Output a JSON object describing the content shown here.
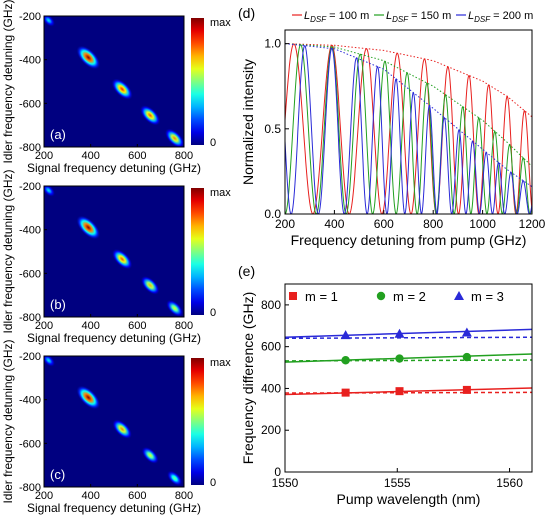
{
  "chart_data": [
    {
      "type": "heatmap",
      "panel_label": "(a)",
      "xlabel": "Signal frequency detuning (GHz)",
      "ylabel": "Idler frequency detuning (GHz)",
      "xlim": [
        200,
        800
      ],
      "ylim": [
        -800,
        -200
      ],
      "xticks": [
        "200",
        "400",
        "600",
        "800"
      ],
      "yticks": [
        "-200",
        "-400",
        "-600",
        "-800"
      ],
      "colorbar": {
        "min_label": "0",
        "max_label": "max"
      },
      "spots": [
        {
          "x": 220,
          "y": -220,
          "peak": 0.35
        },
        {
          "x": 390,
          "y": -390,
          "peak": 1.0
        },
        {
          "x": 535,
          "y": -535,
          "peak": 0.85
        },
        {
          "x": 655,
          "y": -655,
          "peak": 0.8
        },
        {
          "x": 760,
          "y": -760,
          "peak": 0.75
        }
      ]
    },
    {
      "type": "heatmap",
      "panel_label": "(b)",
      "xlabel": "Signal frequency detuning (GHz)",
      "ylabel": "Idler frequency detuning (GHz)",
      "xlim": [
        200,
        800
      ],
      "ylim": [
        -800,
        -200
      ],
      "xticks": [
        "200",
        "400",
        "600",
        "800"
      ],
      "yticks": [
        "-200",
        "-400",
        "-600",
        "-800"
      ],
      "colorbar": {
        "min_label": "0",
        "max_label": "max"
      },
      "spots": [
        {
          "x": 220,
          "y": -220,
          "peak": 0.35
        },
        {
          "x": 390,
          "y": -390,
          "peak": 1.0
        },
        {
          "x": 535,
          "y": -535,
          "peak": 0.8
        },
        {
          "x": 655,
          "y": -655,
          "peak": 0.7
        },
        {
          "x": 760,
          "y": -760,
          "peak": 0.6
        }
      ]
    },
    {
      "type": "heatmap",
      "panel_label": "(c)",
      "xlabel": "Signal frequency detuning (GHz)",
      "ylabel": "Idler frequency detuning (GHz)",
      "xlim": [
        200,
        800
      ],
      "ylim": [
        -800,
        -200
      ],
      "xticks": [
        "200",
        "400",
        "600",
        "800"
      ],
      "yticks": [
        "-200",
        "-400",
        "-600",
        "-800"
      ],
      "colorbar": {
        "min_label": "0",
        "max_label": "max"
      },
      "spots": [
        {
          "x": 220,
          "y": -220,
          "peak": 0.35
        },
        {
          "x": 390,
          "y": -390,
          "peak": 1.0
        },
        {
          "x": 535,
          "y": -535,
          "peak": 0.75
        },
        {
          "x": 655,
          "y": -655,
          "peak": 0.6
        },
        {
          "x": 760,
          "y": -760,
          "peak": 0.5
        }
      ]
    },
    {
      "type": "line",
      "panel_label": "(d)",
      "xlabel": "Frequency detuning from pump (GHz)",
      "ylabel": "Normalized intensity",
      "xlim": [
        200,
        1200
      ],
      "ylim": [
        0,
        1.08
      ],
      "xticks": [
        "200",
        "400",
        "600",
        "800",
        "1000",
        "1200"
      ],
      "yticks": [
        "0.0",
        "0.5",
        "1.0"
      ],
      "series": [
        {
          "name": "L_DSF = 100 m",
          "legend_base": "L",
          "legend_sub": "DSF",
          "legend_value": " = 100 m",
          "color": "#e8201e",
          "peaks": [
            390,
            530,
            655,
            765,
            860,
            945,
            1025,
            1100,
            1170
          ],
          "envelope": [
            [
              200,
              1.0
            ],
            [
              400,
              0.99
            ],
            [
              600,
              0.96
            ],
            [
              800,
              0.9
            ],
            [
              1000,
              0.78
            ],
            [
              1100,
              0.69
            ],
            [
              1200,
              0.57
            ]
          ]
        },
        {
          "name": "L_DSF = 150 m",
          "legend_base": "L",
          "legend_sub": "DSF",
          "legend_value": " = 150 m",
          "color": "#22a020",
          "peaks": [
            390,
            505,
            605,
            695,
            775,
            850,
            920,
            985,
            1050,
            1110,
            1165
          ],
          "envelope": [
            [
              200,
              1.0
            ],
            [
              400,
              0.98
            ],
            [
              600,
              0.9
            ],
            [
              800,
              0.75
            ],
            [
              1000,
              0.55
            ],
            [
              1100,
              0.42
            ],
            [
              1200,
              0.28
            ]
          ]
        },
        {
          "name": "L_DSF = 200 m",
          "legend_base": "L",
          "legend_sub": "DSF",
          "legend_value": " = 200 m",
          "color": "#2a2ad8",
          "peaks": [
            390,
            490,
            575,
            650,
            720,
            785,
            845,
            905,
            960,
            1015,
            1065,
            1115,
            1165
          ],
          "envelope": [
            [
              200,
              1.0
            ],
            [
              400,
              0.97
            ],
            [
              600,
              0.85
            ],
            [
              800,
              0.62
            ],
            [
              1000,
              0.38
            ],
            [
              1100,
              0.26
            ],
            [
              1200,
              0.16
            ]
          ]
        }
      ]
    },
    {
      "type": "scatter",
      "panel_label": "(e)",
      "xlabel": "Pump wavelength (nm)",
      "ylabel": "Frequency difference (GHz)",
      "xlim": [
        1550,
        1561
      ],
      "ylim": [
        0,
        900
      ],
      "xticks": [
        "1550",
        "1555",
        "1560"
      ],
      "yticks": [
        "0",
        "200",
        "400",
        "600",
        "800"
      ],
      "series": [
        {
          "name": "m = 1",
          "color": "#e8201e",
          "marker": "square",
          "x": [
            1552.7,
            1555.1,
            1558.1
          ],
          "y": [
            380,
            387,
            393
          ],
          "fit_solid": [
            [
              1550,
              371
            ],
            [
              1561,
              402
            ]
          ],
          "fit_dashed": [
            [
              1550,
              378
            ],
            [
              1561,
              381
            ]
          ]
        },
        {
          "name": "m = 2",
          "color": "#22a020",
          "marker": "circle",
          "x": [
            1552.7,
            1555.1,
            1558.1
          ],
          "y": [
            535,
            543,
            550
          ],
          "fit_solid": [
            [
              1550,
              526
            ],
            [
              1561,
              565
            ]
          ],
          "fit_dashed": [
            [
              1550,
              532
            ],
            [
              1561,
              536
            ]
          ]
        },
        {
          "name": "m = 3",
          "color": "#2a2ad8",
          "marker": "triangle",
          "x": [
            1552.7,
            1555.1,
            1558.1
          ],
          "y": [
            655,
            662,
            668
          ],
          "fit_solid": [
            [
              1550,
              645
            ],
            [
              1561,
              683
            ]
          ],
          "fit_dashed": [
            [
              1550,
              640
            ],
            [
              1561,
              645
            ]
          ]
        }
      ]
    }
  ]
}
